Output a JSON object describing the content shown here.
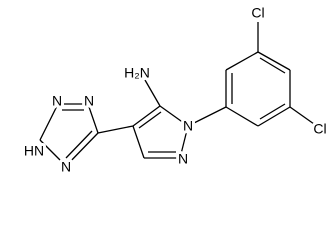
{
  "atoms": [
    {
      "label": "Cl"
    },
    {
      "label": "Cl"
    },
    {
      "label": "H₂N"
    },
    {
      "label": "N"
    },
    {
      "label": "N"
    },
    {
      "label": "N"
    },
    {
      "label": "N"
    },
    {
      "label": "HN"
    },
    {
      "label": "N"
    }
  ]
}
